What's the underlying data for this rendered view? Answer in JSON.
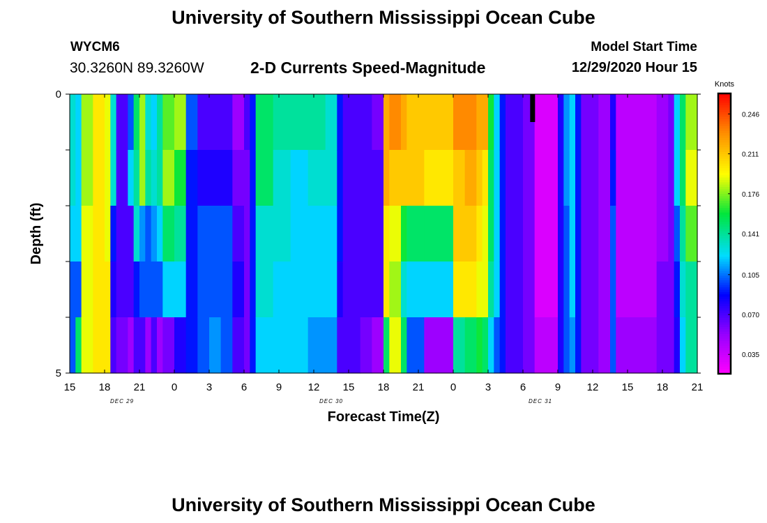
{
  "header": {
    "title": "University of Southern Mississippi Ocean Cube",
    "station": "WYCM6",
    "coordinates": "30.3260N 89.3260W",
    "subtitle": "2-D Currents Speed-Magnitude",
    "model_label": "Model Start Time",
    "model_time": "12/29/2020 Hour 15"
  },
  "footer": {
    "title": "University of Southern Mississippi Ocean Cube"
  },
  "chart_data": {
    "type": "heatmap",
    "xlabel": "Forecast Time(Z)",
    "ylabel": "Depth (ft)",
    "x_ticks": [
      "15",
      "18",
      "21",
      "0",
      "3",
      "6",
      "9",
      "12",
      "15",
      "18",
      "21",
      "0",
      "3",
      "6",
      "9",
      "12",
      "15",
      "18",
      "21"
    ],
    "date_labels": [
      "DEC 29",
      "DEC 30",
      "DEC 31"
    ],
    "y_ticks": [
      "0",
      "5"
    ],
    "ylim": [
      0,
      5
    ],
    "colorbar": {
      "unit": "Knots",
      "ticks": [
        "0.246",
        "0.211",
        "0.176",
        "0.141",
        "0.105",
        "0.070",
        "0.035"
      ],
      "range": [
        0.018,
        0.264
      ]
    },
    "x_hours_start": 15,
    "x_hours_end": 69,
    "depth_levels": 5,
    "columns": [
      {
        "h": 15.0,
        "v": [
          0.13,
          0.13,
          0.12,
          0.1,
          0.1
        ]
      },
      {
        "h": 15.5,
        "v": [
          0.12,
          0.12,
          0.12,
          0.1,
          0.15
        ]
      },
      {
        "h": 16.0,
        "v": [
          0.18,
          0.18,
          0.19,
          0.19,
          0.19
        ]
      },
      {
        "h": 17.0,
        "v": [
          0.2,
          0.2,
          0.2,
          0.2,
          0.2
        ]
      },
      {
        "h": 18.0,
        "v": [
          0.19,
          0.19,
          0.19,
          0.2,
          0.2
        ]
      },
      {
        "h": 18.5,
        "v": [
          0.13,
          0.13,
          0.09,
          0.08,
          0.07
        ]
      },
      {
        "h": 19.0,
        "v": [
          0.07,
          0.07,
          0.07,
          0.07,
          0.06
        ]
      },
      {
        "h": 20.0,
        "v": [
          0.1,
          0.12,
          0.07,
          0.07,
          0.05
        ]
      },
      {
        "h": 20.5,
        "v": [
          0.15,
          0.14,
          0.13,
          0.09,
          0.07
        ]
      },
      {
        "h": 21.0,
        "v": [
          0.18,
          0.18,
          0.11,
          0.1,
          0.07
        ]
      },
      {
        "h": 21.5,
        "v": [
          0.13,
          0.14,
          0.1,
          0.1,
          0.05
        ]
      },
      {
        "h": 22.0,
        "v": [
          0.12,
          0.13,
          0.11,
          0.1,
          0.07
        ]
      },
      {
        "h": 22.5,
        "v": [
          0.14,
          0.14,
          0.12,
          0.1,
          0.05
        ]
      },
      {
        "h": 23.0,
        "v": [
          0.17,
          0.18,
          0.15,
          0.12,
          0.06
        ]
      },
      {
        "h": 24.0,
        "v": [
          0.18,
          0.16,
          0.14,
          0.12,
          0.08
        ]
      },
      {
        "h": 25.0,
        "v": [
          0.1,
          0.09,
          0.09,
          0.09,
          0.09
        ]
      },
      {
        "h": 26.0,
        "v": [
          0.07,
          0.08,
          0.1,
          0.1,
          0.1
        ]
      },
      {
        "h": 27.0,
        "v": [
          0.07,
          0.08,
          0.1,
          0.1,
          0.11
        ]
      },
      {
        "h": 28.0,
        "v": [
          0.07,
          0.08,
          0.1,
          0.1,
          0.1
        ]
      },
      {
        "h": 29.0,
        "v": [
          0.05,
          0.06,
          0.07,
          0.08,
          0.07
        ]
      },
      {
        "h": 30.0,
        "v": [
          0.07,
          0.06,
          0.06,
          0.06,
          0.06
        ]
      },
      {
        "h": 30.5,
        "v": [
          0.09,
          0.09,
          0.09,
          0.09,
          0.09
        ]
      },
      {
        "h": 31.0,
        "v": [
          0.15,
          0.15,
          0.13,
          0.13,
          0.12
        ]
      },
      {
        "h": 32.5,
        "v": [
          0.14,
          0.13,
          0.13,
          0.12,
          0.12
        ]
      },
      {
        "h": 34.0,
        "v": [
          0.14,
          0.12,
          0.12,
          0.12,
          0.12
        ]
      },
      {
        "h": 35.5,
        "v": [
          0.14,
          0.13,
          0.12,
          0.12,
          0.11
        ]
      },
      {
        "h": 37.0,
        "v": [
          0.13,
          0.13,
          0.12,
          0.12,
          0.11
        ]
      },
      {
        "h": 38.0,
        "v": [
          0.09,
          0.09,
          0.09,
          0.08,
          0.07
        ]
      },
      {
        "h": 38.5,
        "v": [
          0.07,
          0.07,
          0.07,
          0.07,
          0.07
        ]
      },
      {
        "h": 40.0,
        "v": [
          0.07,
          0.07,
          0.07,
          0.07,
          0.06
        ]
      },
      {
        "h": 41.0,
        "v": [
          0.06,
          0.07,
          0.07,
          0.07,
          0.05
        ]
      },
      {
        "h": 42.0,
        "v": [
          0.22,
          0.22,
          0.2,
          0.2,
          0.15
        ]
      },
      {
        "h": 42.5,
        "v": [
          0.23,
          0.21,
          0.19,
          0.18,
          0.19
        ]
      },
      {
        "h": 43.5,
        "v": [
          0.22,
          0.21,
          0.16,
          0.13,
          0.15
        ]
      },
      {
        "h": 44.0,
        "v": [
          0.21,
          0.21,
          0.15,
          0.12,
          0.1
        ]
      },
      {
        "h": 45.0,
        "v": [
          0.21,
          0.21,
          0.15,
          0.12,
          0.1
        ]
      },
      {
        "h": 45.5,
        "v": [
          0.21,
          0.2,
          0.15,
          0.12,
          0.05
        ]
      },
      {
        "h": 46.5,
        "v": [
          0.21,
          0.2,
          0.15,
          0.12,
          0.05
        ]
      },
      {
        "h": 48.0,
        "v": [
          0.23,
          0.21,
          0.21,
          0.2,
          0.14
        ]
      },
      {
        "h": 49.0,
        "v": [
          0.23,
          0.22,
          0.21,
          0.2,
          0.15
        ]
      },
      {
        "h": 50.0,
        "v": [
          0.22,
          0.21,
          0.2,
          0.19,
          0.16
        ]
      },
      {
        "h": 50.5,
        "v": [
          0.22,
          0.2,
          0.19,
          0.19,
          0.15
        ]
      },
      {
        "h": 51.0,
        "v": [
          0.16,
          0.15,
          0.15,
          0.14,
          0.12
        ]
      },
      {
        "h": 51.5,
        "v": [
          0.12,
          0.12,
          0.12,
          0.12,
          0.1
        ]
      },
      {
        "h": 52.0,
        "v": [
          0.09,
          0.09,
          0.09,
          0.09,
          0.09
        ]
      },
      {
        "h": 52.5,
        "v": [
          0.07,
          0.07,
          0.07,
          0.07,
          0.07
        ]
      },
      {
        "h": 54.0,
        "v": [
          0.06,
          0.06,
          0.06,
          0.06,
          0.06
        ]
      },
      {
        "h": 55.0,
        "v": [
          0.03,
          0.03,
          0.03,
          0.03,
          0.04
        ]
      },
      {
        "h": 56.5,
        "v": [
          0.03,
          0.03,
          0.03,
          0.03,
          0.04
        ]
      },
      {
        "h": 57.0,
        "v": [
          0.08,
          0.08,
          0.08,
          0.08,
          0.08
        ]
      },
      {
        "h": 57.5,
        "v": [
          0.11,
          0.11,
          0.1,
          0.1,
          0.1
        ]
      },
      {
        "h": 58.0,
        "v": [
          0.12,
          0.12,
          0.12,
          0.12,
          0.11
        ]
      },
      {
        "h": 58.5,
        "v": [
          0.09,
          0.09,
          0.09,
          0.09,
          0.09
        ]
      },
      {
        "h": 59.0,
        "v": [
          0.06,
          0.06,
          0.06,
          0.06,
          0.06
        ]
      },
      {
        "h": 60.5,
        "v": [
          0.05,
          0.05,
          0.05,
          0.05,
          0.05
        ]
      },
      {
        "h": 61.5,
        "v": [
          0.08,
          0.09,
          0.1,
          0.1,
          0.1
        ]
      },
      {
        "h": 62.0,
        "v": [
          0.04,
          0.04,
          0.04,
          0.04,
          0.05
        ]
      },
      {
        "h": 64.0,
        "v": [
          0.04,
          0.04,
          0.04,
          0.04,
          0.05
        ]
      },
      {
        "h": 65.5,
        "v": [
          0.05,
          0.05,
          0.05,
          0.06,
          0.06
        ]
      },
      {
        "h": 66.5,
        "v": [
          0.06,
          0.06,
          0.06,
          0.06,
          0.06
        ]
      },
      {
        "h": 67.0,
        "v": [
          0.12,
          0.12,
          0.1,
          0.09,
          0.08
        ]
      },
      {
        "h": 67.5,
        "v": [
          0.15,
          0.15,
          0.14,
          0.13,
          0.12
        ]
      },
      {
        "h": 68.0,
        "v": [
          0.18,
          0.19,
          0.17,
          0.14,
          0.14
        ]
      }
    ],
    "missing_marker": {
      "h": 54.8,
      "depth_from": 0,
      "depth_to": 0.5
    }
  }
}
